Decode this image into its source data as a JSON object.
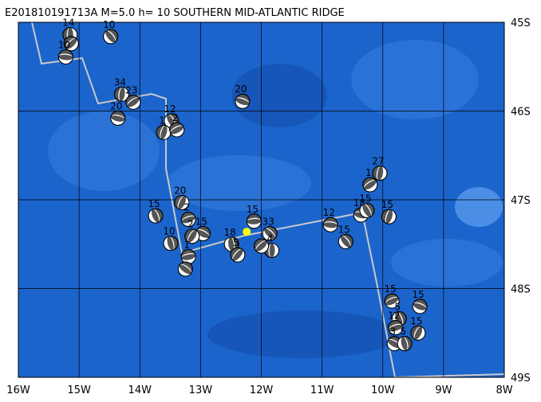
{
  "chart_data": {
    "type": "focal-map",
    "title": "E201810191713A M=5.0 h= 10 SOUTHERN MID-ATLANTIC RIDGE",
    "xlim": [
      -16,
      -8
    ],
    "ylim": [
      -49,
      -45
    ],
    "xticks": [
      {
        "value": -16,
        "label": "16W"
      },
      {
        "value": -15,
        "label": "15W"
      },
      {
        "value": -14,
        "label": "14W"
      },
      {
        "value": -13,
        "label": "13W"
      },
      {
        "value": -12,
        "label": "12W"
      },
      {
        "value": -11,
        "label": "11W"
      },
      {
        "value": -10,
        "label": "10W"
      },
      {
        "value": -9,
        "label": "9W"
      },
      {
        "value": -8,
        "label": "8W"
      }
    ],
    "yticks": [
      {
        "value": -45,
        "label": "45S"
      },
      {
        "value": -46,
        "label": "46S"
      },
      {
        "value": -47,
        "label": "47S"
      },
      {
        "value": -48,
        "label": "48S"
      },
      {
        "value": -49,
        "label": "49S"
      }
    ],
    "grid": true,
    "main_event": {
      "lon": -12.24,
      "lat": -47.36,
      "color": "#ffff00"
    },
    "events": [
      {
        "lon": -15.15,
        "lat": -45.14,
        "depth": 14
      },
      {
        "lon": -15.13,
        "lat": -45.24,
        "depth": null
      },
      {
        "lon": -15.22,
        "lat": -45.39,
        "depth": 10
      },
      {
        "lon": -14.48,
        "lat": -45.16,
        "depth": 10
      },
      {
        "lon": -14.3,
        "lat": -45.81,
        "depth": 34
      },
      {
        "lon": -14.11,
        "lat": -45.9,
        "depth": 23
      },
      {
        "lon": -14.36,
        "lat": -46.08,
        "depth": 20
      },
      {
        "lon": -13.48,
        "lat": -46.11,
        "depth": 12
      },
      {
        "lon": -13.61,
        "lat": -46.24,
        "depth": 1
      },
      {
        "lon": -13.39,
        "lat": -46.21,
        "depth": 2
      },
      {
        "lon": -12.31,
        "lat": -45.89,
        "depth": 20
      },
      {
        "lon": -13.74,
        "lat": -47.18,
        "depth": 15
      },
      {
        "lon": -13.31,
        "lat": -47.03,
        "depth": 20
      },
      {
        "lon": -13.2,
        "lat": -47.22,
        "depth": 2
      },
      {
        "lon": -12.96,
        "lat": -47.38,
        "depth": 15
      },
      {
        "lon": -13.49,
        "lat": -47.49,
        "depth": 10
      },
      {
        "lon": -13.14,
        "lat": -47.41,
        "depth": 2
      },
      {
        "lon": -13.2,
        "lat": -47.64,
        "depth": 1
      },
      {
        "lon": -13.25,
        "lat": -47.78,
        "depth": null
      },
      {
        "lon": -12.49,
        "lat": -47.5,
        "depth": 18
      },
      {
        "lon": -12.39,
        "lat": -47.62,
        "depth": 5
      },
      {
        "lon": -12.12,
        "lat": -47.24,
        "depth": 15
      },
      {
        "lon": -11.86,
        "lat": -47.38,
        "depth": 33
      },
      {
        "lon": -11.83,
        "lat": -47.57,
        "depth": 4
      },
      {
        "lon": -12.0,
        "lat": -47.52,
        "depth": null
      },
      {
        "lon": -10.86,
        "lat": -47.28,
        "depth": 12
      },
      {
        "lon": -10.61,
        "lat": -47.47,
        "depth": 15
      },
      {
        "lon": -10.05,
        "lat": -46.7,
        "depth": 27
      },
      {
        "lon": -10.21,
        "lat": -46.83,
        "depth": 1
      },
      {
        "lon": -10.36,
        "lat": -47.17,
        "depth": 18
      },
      {
        "lon": -10.26,
        "lat": -47.12,
        "depth": 15
      },
      {
        "lon": -9.9,
        "lat": -47.19,
        "depth": 15
      },
      {
        "lon": -9.85,
        "lat": -48.14,
        "depth": 15
      },
      {
        "lon": -9.39,
        "lat": -48.2,
        "depth": 15
      },
      {
        "lon": -9.73,
        "lat": -48.34,
        "depth": 5
      },
      {
        "lon": -9.42,
        "lat": -48.5,
        "depth": 15
      },
      {
        "lon": -9.79,
        "lat": -48.44,
        "depth": 12
      },
      {
        "lon": -9.81,
        "lat": -48.62,
        "depth": 3
      },
      {
        "lon": -9.64,
        "lat": -48.62,
        "depth": 5
      }
    ]
  }
}
